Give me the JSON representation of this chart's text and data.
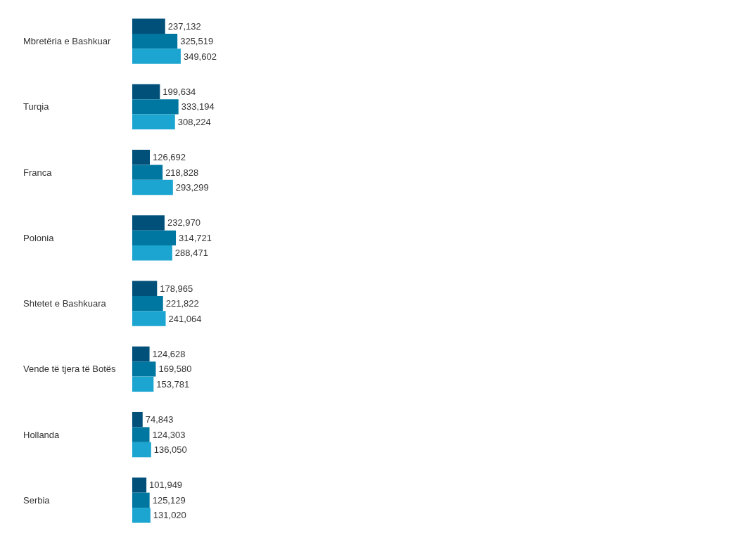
{
  "chart_data": {
    "type": "bar",
    "orientation": "horizontal",
    "categories": [
      "Mbretëria e Bashkuar",
      "Turqia",
      "Franca",
      "Polonia",
      "Shtetet e Bashkuara",
      "Vende të tjera të Botës",
      "Hollanda",
      "Serbia"
    ],
    "series": [
      {
        "color": "#00507a",
        "values": [
          237132,
          199634,
          126692,
          232970,
          178965,
          124628,
          74843,
          101949
        ],
        "value_labels": [
          "237,132",
          "199,634",
          "126,692",
          "232,970",
          "178,965",
          "124,628",
          "74,843",
          "101,949"
        ]
      },
      {
        "color": "#0077a0",
        "values": [
          325519,
          333194,
          218828,
          314721,
          221822,
          169580,
          124303,
          125129
        ],
        "value_labels": [
          "325,519",
          "333,194",
          "218,828",
          "314,721",
          "221,822",
          "169,580",
          "124,303",
          "125,129"
        ]
      },
      {
        "color": "#1ba5d0",
        "values": [
          349602,
          308224,
          293299,
          288471,
          241064,
          153781,
          136050,
          131020
        ],
        "value_labels": [
          "349,602",
          "308,224",
          "293,299",
          "288,471",
          "241,064",
          "153,781",
          "136,050",
          "131,020"
        ]
      }
    ]
  }
}
